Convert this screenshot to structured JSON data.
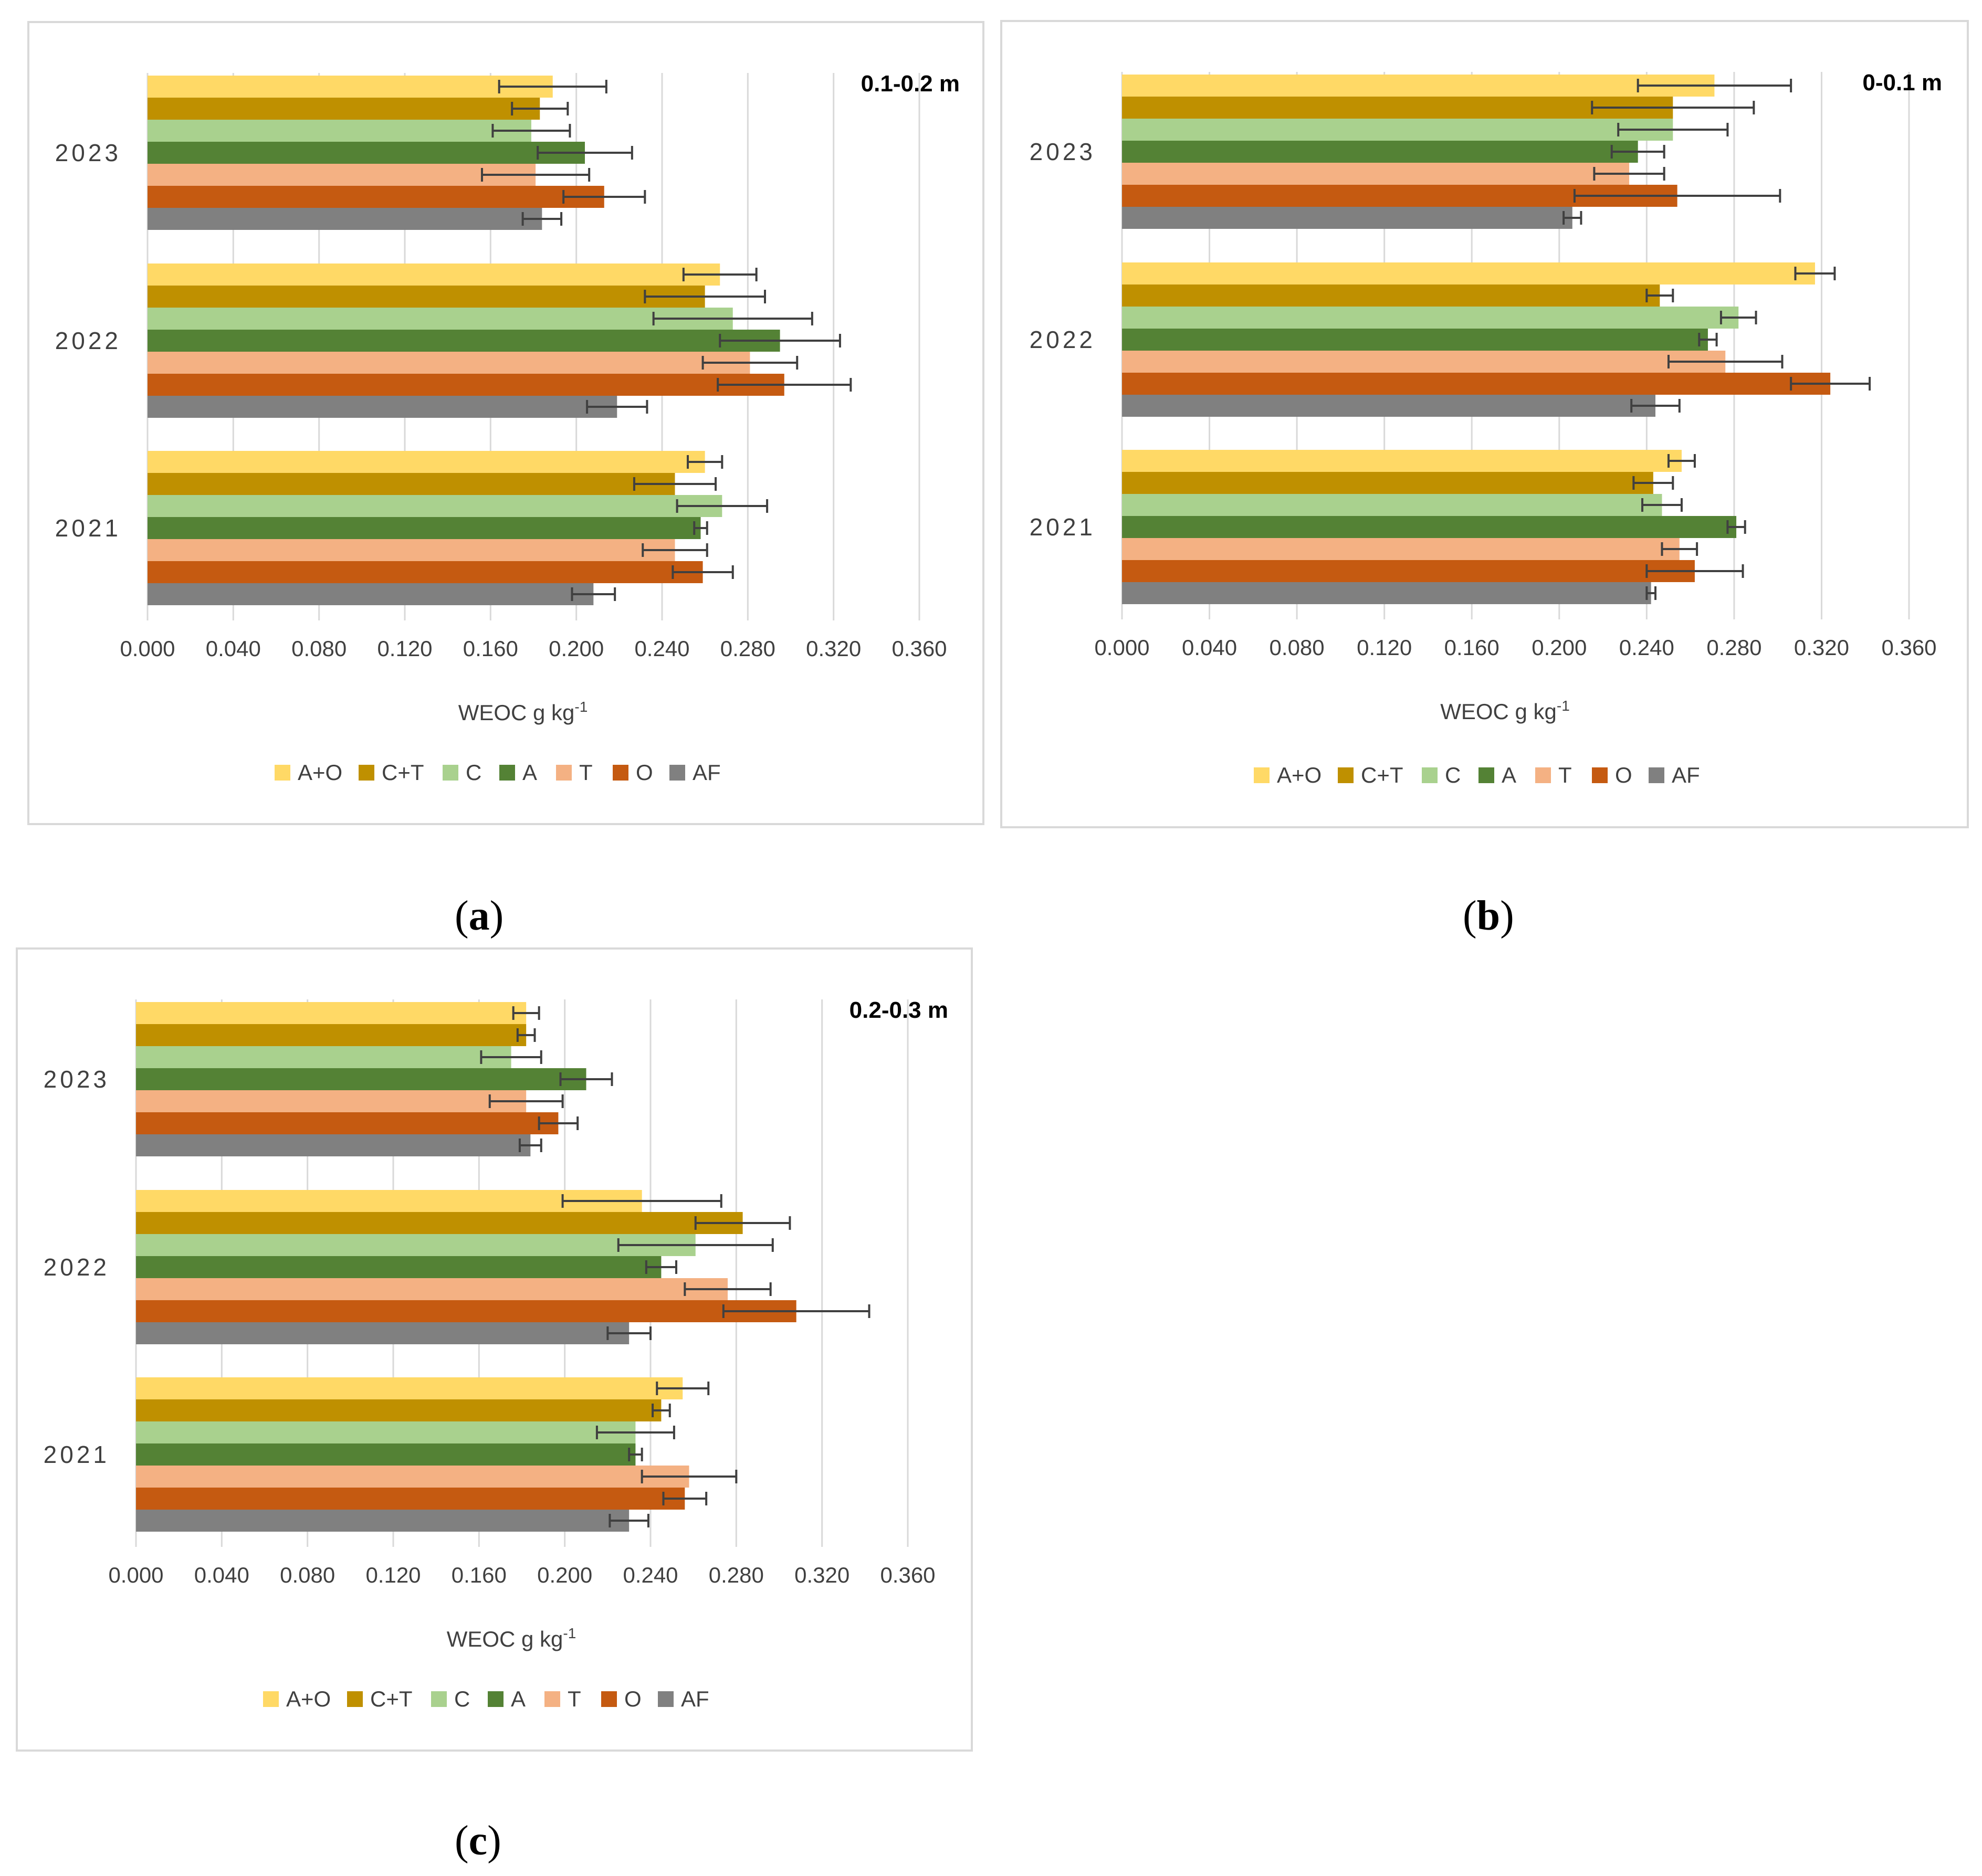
{
  "captions": {
    "a": "a",
    "b": "b",
    "c": "c"
  },
  "chart_data": [
    {
      "id": "a",
      "type": "bar",
      "orientation": "horizontal",
      "depth_label": "0.1-0.2 m",
      "xlabel": "WEOC g kg",
      "xlabel_sup": "-1",
      "xlim": [
        0,
        0.36
      ],
      "xticks": [
        "0.000",
        "0.040",
        "0.080",
        "0.120",
        "0.160",
        "0.200",
        "0.240",
        "0.280",
        "0.320",
        "0.360"
      ],
      "categories": [
        "2023",
        "2022",
        "2021"
      ],
      "series": [
        {
          "name": "A+O",
          "color": "#FFD966",
          "values": [
            0.189,
            0.267,
            0.26
          ],
          "errors": [
            0.025,
            0.017,
            0.008
          ]
        },
        {
          "name": "C+T",
          "color": "#BF9000",
          "values": [
            0.183,
            0.26,
            0.246
          ],
          "errors": [
            0.013,
            0.028,
            0.019
          ]
        },
        {
          "name": "C",
          "color": "#A9D18E",
          "values": [
            0.179,
            0.273,
            0.268
          ],
          "errors": [
            0.018,
            0.037,
            0.021
          ]
        },
        {
          "name": "A",
          "color": "#548235",
          "values": [
            0.204,
            0.295,
            0.258
          ],
          "errors": [
            0.022,
            0.028,
            0.003
          ]
        },
        {
          "name": "T",
          "color": "#F4B183",
          "values": [
            0.181,
            0.281,
            0.246
          ],
          "errors": [
            0.025,
            0.022,
            0.015
          ]
        },
        {
          "name": "O",
          "color": "#C55A11",
          "values": [
            0.213,
            0.297,
            0.259
          ],
          "errors": [
            0.019,
            0.031,
            0.014
          ]
        },
        {
          "name": "AF",
          "color": "#808080",
          "values": [
            0.184,
            0.219,
            0.208
          ],
          "errors": [
            0.009,
            0.014,
            0.01
          ]
        }
      ]
    },
    {
      "id": "b",
      "type": "bar",
      "orientation": "horizontal",
      "depth_label": "0-0.1 m",
      "xlabel": "WEOC g kg",
      "xlabel_sup": "-1",
      "xlim": [
        0,
        0.36
      ],
      "xticks": [
        "0.000",
        "0.040",
        "0.080",
        "0.120",
        "0.160",
        "0.200",
        "0.240",
        "0.280",
        "0.320",
        "0.360"
      ],
      "categories": [
        "2023",
        "2022",
        "2021"
      ],
      "series": [
        {
          "name": "A+O",
          "color": "#FFD966",
          "values": [
            0.271,
            0.317,
            0.256
          ],
          "errors": [
            0.035,
            0.009,
            0.006
          ]
        },
        {
          "name": "C+T",
          "color": "#BF9000",
          "values": [
            0.252,
            0.246,
            0.243
          ],
          "errors": [
            0.037,
            0.006,
            0.009
          ]
        },
        {
          "name": "C",
          "color": "#A9D18E",
          "values": [
            0.252,
            0.282,
            0.247
          ],
          "errors": [
            0.025,
            0.008,
            0.009
          ]
        },
        {
          "name": "A",
          "color": "#548235",
          "values": [
            0.236,
            0.268,
            0.281
          ],
          "errors": [
            0.012,
            0.004,
            0.004
          ]
        },
        {
          "name": "T",
          "color": "#F4B183",
          "values": [
            0.232,
            0.276,
            0.255
          ],
          "errors": [
            0.016,
            0.026,
            0.008
          ]
        },
        {
          "name": "O",
          "color": "#C55A11",
          "values": [
            0.254,
            0.324,
            0.262
          ],
          "errors": [
            0.047,
            0.018,
            0.022
          ]
        },
        {
          "name": "AF",
          "color": "#808080",
          "values": [
            0.206,
            0.244,
            0.242
          ],
          "errors": [
            0.004,
            0.011,
            0.002
          ]
        }
      ]
    },
    {
      "id": "c",
      "type": "bar",
      "orientation": "horizontal",
      "depth_label": "0.2-0.3 m",
      "xlabel": "WEOC g kg",
      "xlabel_sup": "-1",
      "xlim": [
        0,
        0.36
      ],
      "xticks": [
        "0.000",
        "0.040",
        "0.080",
        "0.120",
        "0.160",
        "0.200",
        "0.240",
        "0.280",
        "0.320",
        "0.360"
      ],
      "categories": [
        "2023",
        "2022",
        "2021"
      ],
      "series": [
        {
          "name": "A+O",
          "color": "#FFD966",
          "values": [
            0.182,
            0.236,
            0.255
          ],
          "errors": [
            0.006,
            0.037,
            0.012
          ]
        },
        {
          "name": "C+T",
          "color": "#BF9000",
          "values": [
            0.182,
            0.283,
            0.245
          ],
          "errors": [
            0.004,
            0.022,
            0.004
          ]
        },
        {
          "name": "C",
          "color": "#A9D18E",
          "values": [
            0.175,
            0.261,
            0.233
          ],
          "errors": [
            0.014,
            0.036,
            0.018
          ]
        },
        {
          "name": "A",
          "color": "#548235",
          "values": [
            0.21,
            0.245,
            0.233
          ],
          "errors": [
            0.012,
            0.007,
            0.003
          ]
        },
        {
          "name": "T",
          "color": "#F4B183",
          "values": [
            0.182,
            0.276,
            0.258
          ],
          "errors": [
            0.017,
            0.02,
            0.022
          ]
        },
        {
          "name": "O",
          "color": "#C55A11",
          "values": [
            0.197,
            0.308,
            0.256
          ],
          "errors": [
            0.009,
            0.034,
            0.01
          ]
        },
        {
          "name": "AF",
          "color": "#808080",
          "values": [
            0.184,
            0.23,
            0.23
          ],
          "errors": [
            0.005,
            0.01,
            0.009
          ]
        }
      ]
    }
  ]
}
